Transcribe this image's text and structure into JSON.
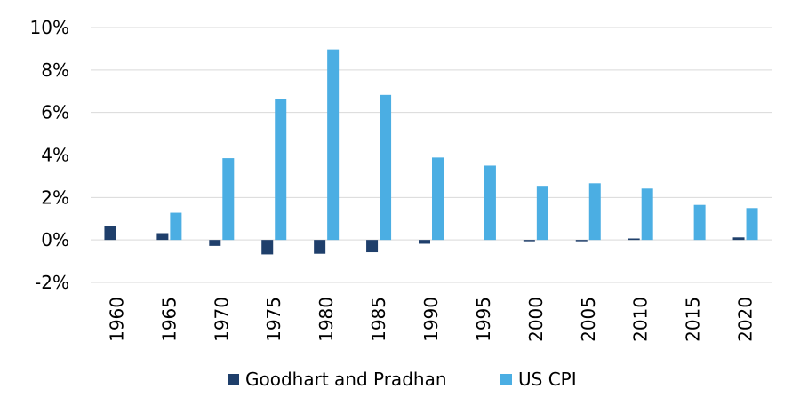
{
  "chart_data": {
    "type": "bar",
    "title": "",
    "xlabel": "",
    "ylabel": "",
    "categories": [
      "1960",
      "1965",
      "1970",
      "1975",
      "1980",
      "1985",
      "1990",
      "1995",
      "2000",
      "2005",
      "2010",
      "2015",
      "2020"
    ],
    "series": [
      {
        "name": "Goodhart and Pradhan",
        "color": "#1f3f6b",
        "values": [
          0.65,
          0.32,
          -0.28,
          -0.68,
          -0.65,
          -0.58,
          -0.18,
          0.0,
          -0.05,
          -0.05,
          0.07,
          0.0,
          0.12
        ]
      },
      {
        "name": "US CPI",
        "color": "#4baee3",
        "values": [
          0.0,
          1.28,
          3.85,
          6.62,
          8.97,
          6.83,
          3.88,
          3.5,
          2.55,
          2.67,
          2.42,
          1.65,
          1.5
        ]
      }
    ],
    "ylim": [
      -2,
      10
    ],
    "yticks": [
      -2,
      0,
      2,
      4,
      6,
      8,
      10
    ],
    "ytick_labels": [
      "-2%",
      "0%",
      "2%",
      "4%",
      "6%",
      "8%",
      "10%"
    ],
    "grid": true,
    "legend_position": "bottom"
  }
}
